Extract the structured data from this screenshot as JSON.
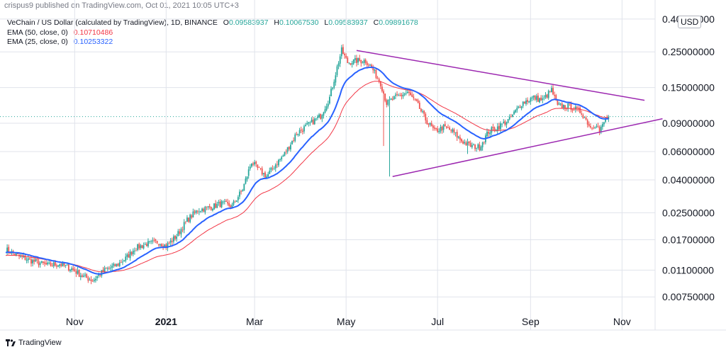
{
  "header": {
    "published": "crispus9 published on TradingView.com, Oct 01, 2021 10:05 UTC+3"
  },
  "legend": {
    "symbol": "VeChain / US Dollar (calculated by TradingView), 1D, BINANCE",
    "ohlc": [
      {
        "key": "O",
        "value": "0.09583937"
      },
      {
        "key": "H",
        "value": "0.10067530"
      },
      {
        "key": "L",
        "value": "0.09583937"
      },
      {
        "key": "C",
        "value": "0.09891678"
      }
    ],
    "ema50": {
      "label": "EMA (50, close, 0)",
      "value": "0.10710486"
    },
    "ema25": {
      "label": "EMA (25, close, 0)",
      "value": "0.10253322"
    }
  },
  "footer": {
    "brand": "TradingView"
  },
  "colors": {
    "up": "#26a69a",
    "down": "#ef5350",
    "ema50": "#f23645",
    "ema25": "#2962ff",
    "trendline": "#9c27b0",
    "grid": "#e0e3eb"
  },
  "chart_data": {
    "type": "candlestick",
    "title": "VeChain / US Dollar, 1D, BINANCE",
    "currency": "USD",
    "yscale": "log",
    "ylim": [
      0.0062,
      0.42
    ],
    "y_ticks": [
      "0.40000000",
      "0.25000000",
      "0.15000000",
      "0.09000000",
      "0.06000000",
      "0.04000000",
      "0.02500000",
      "0.01700000",
      "0.01100000",
      "0.00750000"
    ],
    "y_tick_values": [
      0.4,
      0.25,
      0.15,
      0.09,
      0.06,
      0.04,
      0.025,
      0.017,
      0.011,
      0.0075
    ],
    "x_ticks": [
      {
        "label": "Nov",
        "day": 0,
        "bold": false
      },
      {
        "label": "2021",
        "day": 61,
        "bold": true
      },
      {
        "label": "Mar",
        "day": 120,
        "bold": false
      },
      {
        "label": "May",
        "day": 181,
        "bold": false
      },
      {
        "label": "Jul",
        "day": 242,
        "bold": false
      },
      {
        "label": "Sep",
        "day": 304,
        "bold": false
      },
      {
        "label": "Nov",
        "day": 365,
        "bold": false
      }
    ],
    "xlim_days": [
      -46,
      388
    ],
    "anchors": [
      [
        -46,
        0.0148
      ],
      [
        -38,
        0.0135
      ],
      [
        -28,
        0.0125
      ],
      [
        -18,
        0.0118
      ],
      [
        -10,
        0.012
      ],
      [
        -2,
        0.0112
      ],
      [
        6,
        0.01
      ],
      [
        12,
        0.0095
      ],
      [
        20,
        0.011
      ],
      [
        28,
        0.0118
      ],
      [
        34,
        0.013
      ],
      [
        40,
        0.015
      ],
      [
        48,
        0.016
      ],
      [
        56,
        0.0165
      ],
      [
        61,
        0.0155
      ],
      [
        68,
        0.018
      ],
      [
        75,
        0.0225
      ],
      [
        82,
        0.026
      ],
      [
        90,
        0.027
      ],
      [
        98,
        0.0285
      ],
      [
        105,
        0.0275
      ],
      [
        112,
        0.035
      ],
      [
        118,
        0.052
      ],
      [
        122,
        0.047
      ],
      [
        128,
        0.042
      ],
      [
        134,
        0.05
      ],
      [
        140,
        0.058
      ],
      [
        148,
        0.078
      ],
      [
        156,
        0.088
      ],
      [
        164,
        0.1
      ],
      [
        170,
        0.13
      ],
      [
        175,
        0.2
      ],
      [
        178,
        0.255
      ],
      [
        182,
        0.215
      ],
      [
        188,
        0.22
      ],
      [
        194,
        0.22
      ],
      [
        198,
        0.2
      ],
      [
        204,
        0.16
      ],
      [
        208,
        0.12
      ],
      [
        214,
        0.13
      ],
      [
        222,
        0.14
      ],
      [
        228,
        0.12
      ],
      [
        234,
        0.095
      ],
      [
        240,
        0.08
      ],
      [
        246,
        0.085
      ],
      [
        252,
        0.08
      ],
      [
        258,
        0.07
      ],
      [
        264,
        0.065
      ],
      [
        270,
        0.064
      ],
      [
        276,
        0.08
      ],
      [
        282,
        0.085
      ],
      [
        290,
        0.095
      ],
      [
        298,
        0.12
      ],
      [
        306,
        0.13
      ],
      [
        312,
        0.125
      ],
      [
        318,
        0.145
      ],
      [
        322,
        0.115
      ],
      [
        330,
        0.115
      ],
      [
        338,
        0.105
      ],
      [
        344,
        0.085
      ],
      [
        348,
        0.09
      ],
      [
        350,
        0.08
      ],
      [
        354,
        0.095
      ],
      [
        356,
        0.099
      ]
    ],
    "spikes": [
      {
        "day": 210,
        "low": 0.042
      },
      {
        "day": 206,
        "low": 0.065
      },
      {
        "day": 262,
        "low": 0.058
      }
    ],
    "ema_periods": [
      50,
      25
    ],
    "trendlines": [
      {
        "name": "upper",
        "start": [
          188,
          0.255
        ],
        "end": [
          380,
          0.125
        ]
      },
      {
        "name": "lower",
        "start": [
          212,
          0.042
        ],
        "end": [
          392,
          0.096
        ]
      }
    ],
    "current_price": 0.09891678
  }
}
